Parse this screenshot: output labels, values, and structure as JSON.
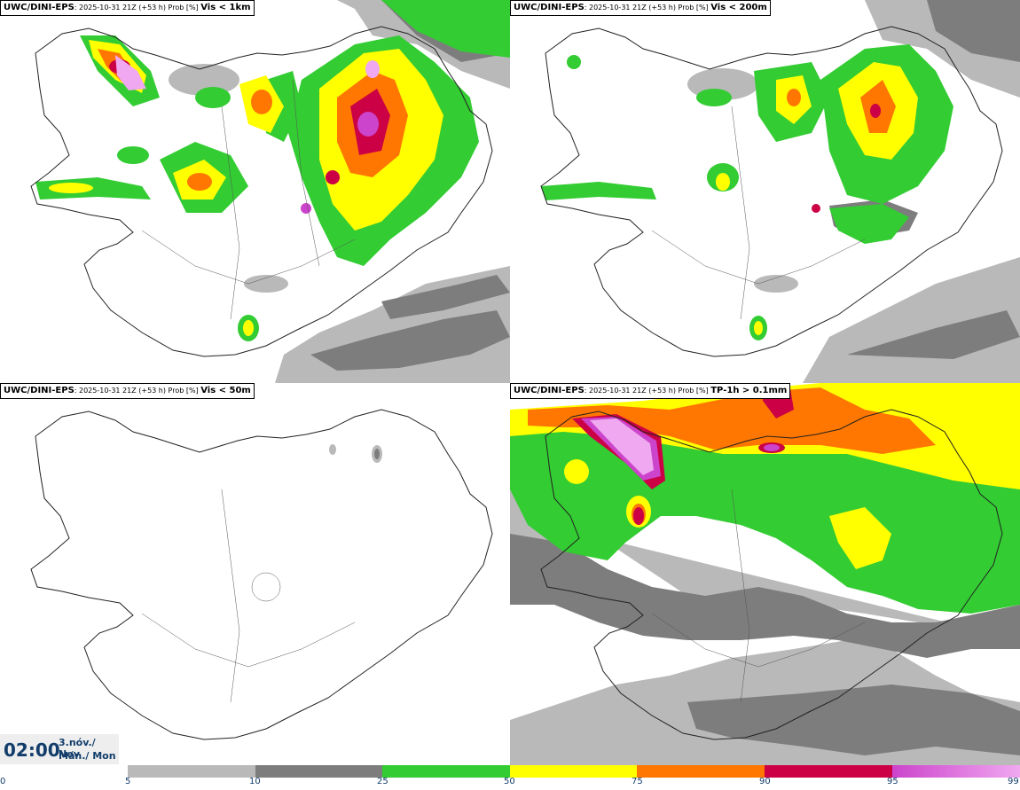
{
  "colors": {
    "p5": "#b9b9b9",
    "p10": "#7d7d7d",
    "p25": "#33cc33",
    "p50": "#ffff00",
    "p75": "#ff7700",
    "p90": "#cc0044",
    "p95": "#cc44cc",
    "p99": "#f0a8f0",
    "coast": "#222222"
  },
  "panels": [
    {
      "model": "UWC/DINI-EPS",
      "run": ": 2025-10-31 21Z (+53 h) Prob [%]",
      "var": "Vis < 1km"
    },
    {
      "model": "UWC/DINI-EPS",
      "run": ": 2025-10-31 21Z (+53 h) Prob [%]",
      "var": "Vis < 200m"
    },
    {
      "model": "UWC/DINI-EPS",
      "run": ": 2025-10-31 21Z (+53 h) Prob [%]",
      "var": "Vis < 50m"
    },
    {
      "model": "UWC/DINI-EPS",
      "run": ": 2025-10-31 21Z (+53 h) Prob [%]",
      "var": "TP-1h > 0.1mm"
    }
  ],
  "valid_time": {
    "time": "02:00",
    "date": "3.nóv./ Nov",
    "weekday": "Mán./ Mon"
  },
  "legend": {
    "ticks": [
      "0",
      "5",
      "10",
      "25",
      "50",
      "75",
      "90",
      "95",
      "99"
    ]
  }
}
